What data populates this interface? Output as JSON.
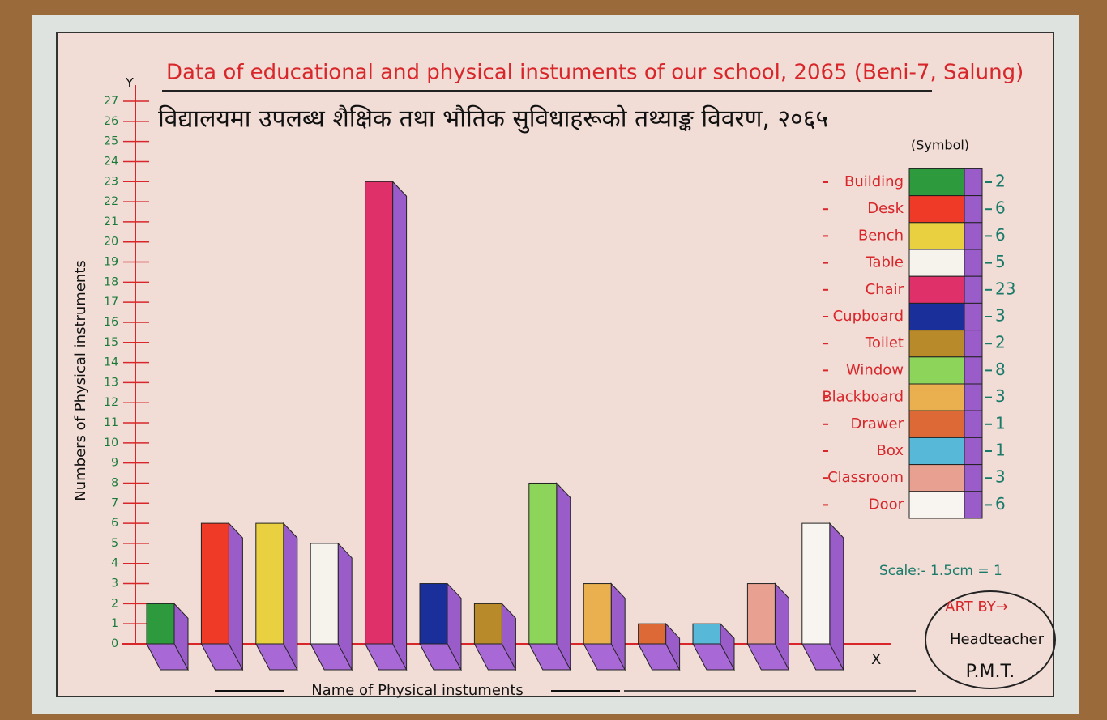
{
  "chart_data": {
    "type": "bar",
    "title": "Data of educational and physical instuments of our school, 2065 (Beni-7, Salung)",
    "subtitle": "विद्यालयमा उपलब्ध शैक्षिक तथा भौतिक सुविधाहरूको तथ्याङ्क विवरण, २०६५",
    "y_label": "Numbers of Physical instruments",
    "x_label": "Name of Physical instuments",
    "y_axis_letter": "Y",
    "x_axis_letter": "X",
    "legend_title": "(Symbol)",
    "categories": [
      "Building",
      "Desk",
      "Bench",
      "Table",
      "Chair",
      "Cupboard",
      "Toilet",
      "Window",
      "Blackboard",
      "Drawer",
      "Box",
      "Classroom",
      "Door"
    ],
    "values": [
      2,
      6,
      6,
      5,
      23,
      3,
      2,
      8,
      3,
      1,
      1,
      3,
      6
    ],
    "colors": [
      "#2e9a3e",
      "#ee3a26",
      "#e8d040",
      "#f6f2ec",
      "#e0306a",
      "#1b2f9a",
      "#b88a2a",
      "#8cd45a",
      "#eab050",
      "#dd6a36",
      "#58b8d8",
      "#e8a090",
      "#f8f4f0"
    ],
    "ylim": [
      0,
      27
    ],
    "yticks": [
      0,
      1,
      2,
      3,
      4,
      5,
      6,
      7,
      8,
      9,
      10,
      11,
      12,
      13,
      14,
      15,
      16,
      17,
      18,
      19,
      20,
      21,
      22,
      23,
      24,
      25,
      26,
      27
    ],
    "scale_note": "Scale:- 1.5cm = 1",
    "credit": [
      "ART BY→",
      "Headteacher",
      "P.M.T."
    ]
  }
}
